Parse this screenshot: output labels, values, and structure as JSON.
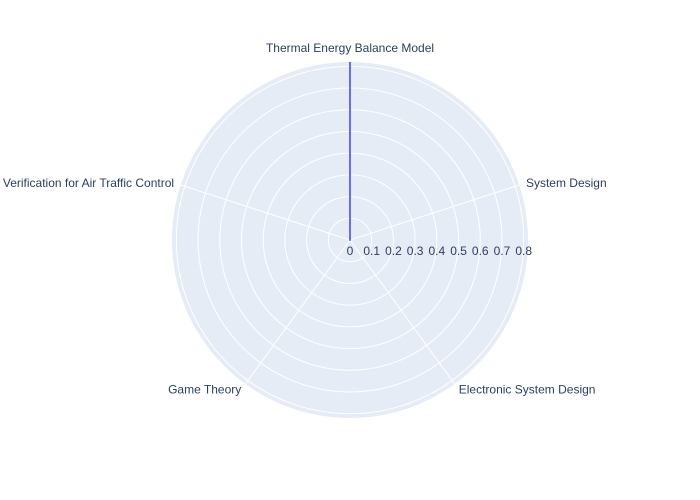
{
  "chart_data": {
    "type": "radar",
    "title": "",
    "categories": [
      "Thermal Energy Balance Model",
      "System Design",
      "Electronic System Design",
      "Game Theory",
      "Formal Verification for Air Traffic Control"
    ],
    "series": [
      {
        "values": [
          0.82,
          0,
          0,
          0,
          0
        ],
        "color": "#636efa"
      }
    ],
    "radial_axis": {
      "range": [
        0,
        0.82
      ],
      "ticks": [
        0,
        0.1,
        0.2,
        0.3,
        0.4,
        0.5,
        0.6,
        0.7,
        0.8
      ],
      "tick_labels": [
        "0",
        "0.1",
        "0.2",
        "0.3",
        "0.4",
        "0.5",
        "0.6",
        "0.7",
        "0.8"
      ],
      "angle_deg": 0
    },
    "grid": true,
    "legend": "none",
    "colors": {
      "background": "#e5ecf6",
      "grid": "#ffffff",
      "text": "#2a3f5f"
    }
  }
}
